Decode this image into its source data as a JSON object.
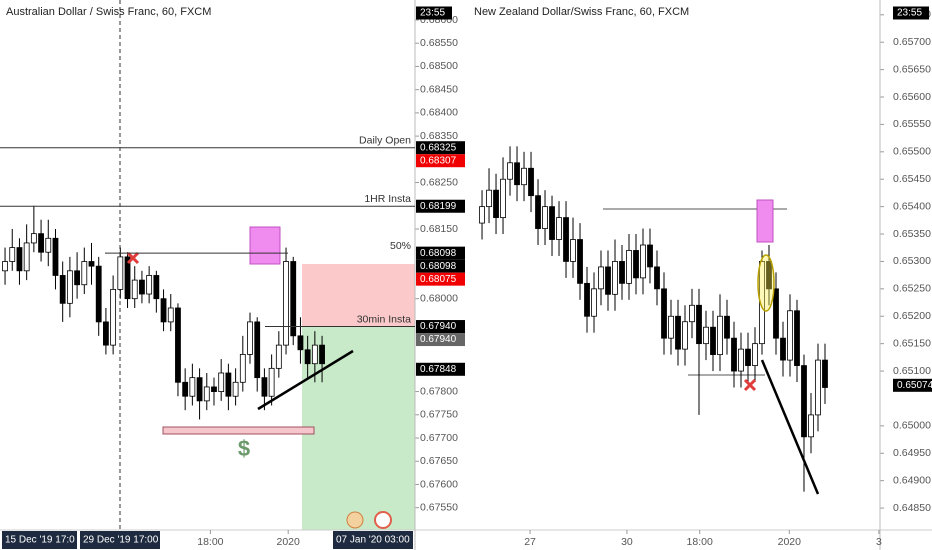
{
  "chart_data": [
    {
      "type": "candlestick",
      "title": "Australian Dollar / Swiss Franc, 60, FXCM",
      "open": [
        0.6806,
        0.6808,
        0.6811,
        0.6806,
        0.6812,
        0.6814,
        0.681,
        0.6813,
        0.6805,
        0.6799,
        0.6806,
        0.6803,
        0.6808,
        0.6807,
        0.6795,
        0.679,
        0.6802,
        0.6809,
        0.68,
        0.6804,
        0.6801,
        0.6805,
        0.68,
        0.6795,
        0.6798,
        0.6782,
        0.6779,
        0.6783,
        0.6778,
        0.6781,
        0.678,
        0.6784,
        0.6779,
        0.6782,
        0.6788,
        0.6795,
        0.6783,
        0.6779,
        0.6785,
        0.679,
        0.6808,
        0.6792,
        0.6789,
        0.6786,
        0.679
      ],
      "high": [
        0.6811,
        0.6815,
        0.6813,
        0.6816,
        0.682,
        0.6817,
        0.6817,
        0.6815,
        0.6808,
        0.6809,
        0.681,
        0.6811,
        0.6812,
        0.6809,
        0.6798,
        0.6805,
        0.6811,
        0.681,
        0.6807,
        0.6806,
        0.6807,
        0.6806,
        0.6802,
        0.6801,
        0.6799,
        0.6785,
        0.6786,
        0.6785,
        0.6784,
        0.6783,
        0.6787,
        0.6786,
        0.6785,
        0.6792,
        0.6797,
        0.6796,
        0.6785,
        0.6788,
        0.6793,
        0.6811,
        0.6809,
        0.6796,
        0.6792,
        0.6793,
        0.6792
      ],
      "low": [
        0.6803,
        0.6806,
        0.6803,
        0.6804,
        0.681,
        0.6808,
        0.6807,
        0.6802,
        0.6795,
        0.6796,
        0.68,
        0.6801,
        0.6803,
        0.6792,
        0.6788,
        0.6788,
        0.68,
        0.6798,
        0.6798,
        0.6799,
        0.6799,
        0.6797,
        0.6793,
        0.6793,
        0.6779,
        0.6776,
        0.6777,
        0.6774,
        0.6776,
        0.6777,
        0.6778,
        0.6776,
        0.6777,
        0.678,
        0.6786,
        0.678,
        0.6776,
        0.6777,
        0.6783,
        0.6788,
        0.679,
        0.6786,
        0.6783,
        0.6782,
        0.6782
      ],
      "close": [
        0.6808,
        0.6811,
        0.6806,
        0.6812,
        0.6814,
        0.681,
        0.6813,
        0.6805,
        0.6799,
        0.6806,
        0.6803,
        0.6808,
        0.6807,
        0.6795,
        0.679,
        0.6802,
        0.6809,
        0.68,
        0.6804,
        0.6801,
        0.6805,
        0.68,
        0.6795,
        0.6798,
        0.6782,
        0.6779,
        0.6783,
        0.6778,
        0.6781,
        0.678,
        0.6784,
        0.6779,
        0.6782,
        0.6788,
        0.6795,
        0.6783,
        0.6779,
        0.6785,
        0.679,
        0.6808,
        0.6792,
        0.6789,
        0.6786,
        0.679,
        0.6786
      ],
      "xlim": [
        -0.7,
        56.9
      ],
      "xticks": [
        {
          "value": 28.5,
          "label": "18:00"
        },
        {
          "value": 39.3,
          "label": "2020"
        }
      ],
      "ylim": [
        0.67502,
        0.68643
      ],
      "yticks": [
        {
          "value": 0.686,
          "label": "0.68600"
        },
        {
          "value": 0.6855,
          "label": "0.68550"
        },
        {
          "value": 0.685,
          "label": "0.68500"
        },
        {
          "value": 0.6845,
          "label": "0.68450"
        },
        {
          "value": 0.684,
          "label": "0.68400"
        },
        {
          "value": 0.6835,
          "label": "0.68350"
        },
        {
          "value": 0.6825,
          "label": "0.68250"
        },
        {
          "value": 0.6815,
          "label": "0.68150"
        },
        {
          "value": 0.68,
          "label": "0.68000"
        },
        {
          "value": 0.678,
          "label": "0.67800"
        },
        {
          "value": 0.6775,
          "label": "0.67750"
        },
        {
          "value": 0.677,
          "label": "0.67700"
        },
        {
          "value": 0.6765,
          "label": "0.67650"
        },
        {
          "value": 0.676,
          "label": "0.67600"
        },
        {
          "value": 0.6755,
          "label": "0.67550"
        }
      ],
      "levels": [
        {
          "label": "Daily Open",
          "value": 0.68325,
          "value_label": "0.68325"
        },
        {
          "label": "1HR Insta",
          "value": 0.68199,
          "value_label": "0.68199"
        },
        {
          "label": "50%",
          "value": 0.68098,
          "value_label": "0.68098"
        },
        {
          "label": "30min Insta",
          "value": 0.6794,
          "value_label": "0.67940"
        }
      ],
      "price_badges": [
        {
          "value": 0.68307,
          "label": "0.68307",
          "color": "#f00000"
        },
        {
          "value": 0.68098,
          "label": "0.68098",
          "color": "#000000"
        },
        {
          "value": 0.68075,
          "label": "0.68075",
          "color": "#f00000"
        },
        {
          "value": 0.6794,
          "label": "0.67940",
          "color": "#666666"
        },
        {
          "value": 0.67848,
          "label": "0.67848",
          "color": "#000000"
        }
      ],
      "countdown": "23:55",
      "time_badges": [
        "15 Dec '19  17:0",
        "29 Dec '19  17:00",
        "07 Jan '20  03:00"
      ],
      "annotation": "$"
    },
    {
      "type": "candlestick",
      "title": "New Zealand Dollar/Swiss Franc, 60, FXCM",
      "open": [
        0.6537,
        0.654,
        0.6543,
        0.6538,
        0.6545,
        0.6548,
        0.6544,
        0.6547,
        0.6542,
        0.6536,
        0.654,
        0.6534,
        0.6538,
        0.653,
        0.6534,
        0.6526,
        0.652,
        0.6525,
        0.6529,
        0.6524,
        0.653,
        0.6526,
        0.6532,
        0.6527,
        0.6533,
        0.6529,
        0.6525,
        0.6516,
        0.652,
        0.6514,
        0.6519,
        0.6522,
        0.6515,
        0.6518,
        0.6513,
        0.652,
        0.6516,
        0.651,
        0.6514,
        0.6511,
        0.6515,
        0.653,
        0.6525,
        0.6516,
        0.6512,
        0.6521,
        0.6511,
        0.6498,
        0.6502,
        0.6512
      ],
      "high": [
        0.6543,
        0.6547,
        0.6546,
        0.6549,
        0.6551,
        0.6551,
        0.655,
        0.655,
        0.6545,
        0.6543,
        0.6542,
        0.6541,
        0.6541,
        0.6538,
        0.6537,
        0.6529,
        0.6528,
        0.6532,
        0.6532,
        0.6534,
        0.6533,
        0.6535,
        0.6535,
        0.6536,
        0.6536,
        0.6532,
        0.6528,
        0.6523,
        0.6523,
        0.6522,
        0.6525,
        0.6525,
        0.6521,
        0.6521,
        0.6524,
        0.6523,
        0.6519,
        0.6517,
        0.6517,
        0.6518,
        0.6532,
        0.6533,
        0.6528,
        0.6519,
        0.6524,
        0.6523,
        0.6513,
        0.6506,
        0.6515,
        0.6515
      ],
      "low": [
        0.6534,
        0.6537,
        0.6535,
        0.6535,
        0.6542,
        0.6541,
        0.6541,
        0.6539,
        0.6533,
        0.6533,
        0.6531,
        0.6531,
        0.6527,
        0.6527,
        0.6523,
        0.6517,
        0.6517,
        0.6522,
        0.6521,
        0.6521,
        0.6523,
        0.6523,
        0.6524,
        0.6524,
        0.6526,
        0.6522,
        0.6513,
        0.6513,
        0.6511,
        0.6511,
        0.6516,
        0.6502,
        0.6512,
        0.651,
        0.651,
        0.6513,
        0.6507,
        0.6507,
        0.6508,
        0.6508,
        0.6513,
        0.6522,
        0.6513,
        0.6509,
        0.6509,
        0.6508,
        0.6488,
        0.6495,
        0.6499,
        0.6504
      ],
      "close": [
        0.654,
        0.6543,
        0.6538,
        0.6545,
        0.6548,
        0.6544,
        0.6547,
        0.6542,
        0.6536,
        0.654,
        0.6534,
        0.6538,
        0.653,
        0.6534,
        0.6526,
        0.652,
        0.6525,
        0.6529,
        0.6524,
        0.653,
        0.6526,
        0.6532,
        0.6527,
        0.6533,
        0.6529,
        0.6525,
        0.6516,
        0.652,
        0.6514,
        0.6519,
        0.6522,
        0.6515,
        0.6518,
        0.6513,
        0.652,
        0.6516,
        0.651,
        0.6514,
        0.6511,
        0.6515,
        0.653,
        0.6525,
        0.6516,
        0.6512,
        0.6521,
        0.6511,
        0.6498,
        0.6502,
        0.6512,
        0.6507
      ],
      "xlim": [
        -2.29,
        56.86
      ],
      "xticks": [
        {
          "value": 6.86,
          "label": "27"
        },
        {
          "value": 20.7,
          "label": "30"
        },
        {
          "value": 31.1,
          "label": "18:00"
        },
        {
          "value": 43.9,
          "label": "2020"
        },
        {
          "value": 56.7,
          "label": "3"
        }
      ],
      "ylim": [
        0.6481,
        0.65777
      ],
      "yticks": [
        {
          "value": 0.6575,
          "label": "0.65750"
        },
        {
          "value": 0.657,
          "label": "0.65700"
        },
        {
          "value": 0.6565,
          "label": "0.65650"
        },
        {
          "value": 0.656,
          "label": "0.65600"
        },
        {
          "value": 0.6555,
          "label": "0.65550"
        },
        {
          "value": 0.655,
          "label": "0.65500"
        },
        {
          "value": 0.6545,
          "label": "0.65450"
        },
        {
          "value": 0.654,
          "label": "0.65400"
        },
        {
          "value": 0.6535,
          "label": "0.65350"
        },
        {
          "value": 0.653,
          "label": "0.65300"
        },
        {
          "value": 0.6525,
          "label": "0.65250"
        },
        {
          "value": 0.652,
          "label": "0.65200"
        },
        {
          "value": 0.6515,
          "label": "0.65150"
        },
        {
          "value": 0.651,
          "label": "0.65100"
        },
        {
          "value": 0.65,
          "label": "0.65000"
        },
        {
          "value": 0.6495,
          "label": "0.64950"
        },
        {
          "value": 0.649,
          "label": "0.64900"
        },
        {
          "value": 0.6485,
          "label": "0.64850"
        }
      ],
      "price_badges": [
        {
          "value": 0.65074,
          "label": "0.65074",
          "color": "#000000"
        }
      ],
      "countdown": "23:55"
    }
  ]
}
